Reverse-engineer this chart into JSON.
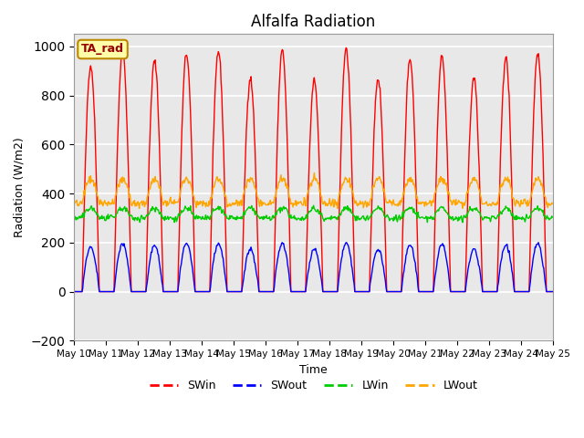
{
  "title": "Alfalfa Radiation",
  "xlabel": "Time",
  "ylabel": "Radiation (W/m2)",
  "ylim": [
    -200,
    1050
  ],
  "yticks": [
    -200,
    0,
    200,
    400,
    600,
    800,
    1000
  ],
  "xtick_labels": [
    "May 10",
    "May 11",
    "May 12",
    "May 13",
    "May 14",
    "May 15",
    "May 16",
    "May 17",
    "May 18",
    "May 19",
    "May 20",
    "May 21",
    "May 22",
    "May 23",
    "May 24",
    "May 25"
  ],
  "colors": {
    "SWin": "#FF0000",
    "SWout": "#0000FF",
    "LWin": "#00CC00",
    "LWout": "#FFA500"
  },
  "annotation_text": "TA_rad",
  "annotation_color": "#990000",
  "annotation_bg": "#FFFFAA",
  "annotation_border": "#BB8800",
  "bg_color": "#E8E8E8",
  "fig_color": "#FFFFFF",
  "grid_color": "#FFFFFF",
  "linewidth": 1.0,
  "day_peaks_SWin": [
    920,
    980,
    940,
    970,
    980,
    870,
    980,
    860,
    990,
    870,
    950,
    960,
    870,
    950,
    970
  ],
  "LWin_base": 300,
  "LWin_day_amp": 40,
  "LWout_base": 360,
  "LWout_day_amp": 100
}
